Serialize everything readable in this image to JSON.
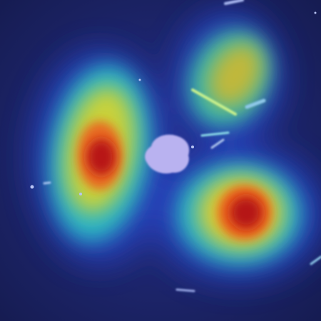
{
  "image": {
    "kind": "heatmap-overlay",
    "background_color": "#1b2262",
    "colormap": [
      "#1b2262",
      "#2437a8",
      "#1f78d0",
      "#2cc6b5",
      "#9ed64a",
      "#f2c12a",
      "#e8531c",
      "#b81414"
    ]
  },
  "regions": [
    {
      "name": "left-hotspot",
      "peak_color": "#b81414",
      "intensity": 1.0
    },
    {
      "name": "lower-right-hotspot",
      "peak_color": "#b81414",
      "intensity": 1.0
    },
    {
      "name": "upper-right-warm-region",
      "peak_color": "#f2c12a",
      "intensity": 0.65
    }
  ],
  "features": [
    {
      "name": "central-blob",
      "color": "#b9b2f0"
    },
    {
      "name": "diagonal-streak",
      "color": "#c8f08c"
    },
    {
      "name": "small-streaks",
      "color": "#8ec8e8"
    }
  ]
}
